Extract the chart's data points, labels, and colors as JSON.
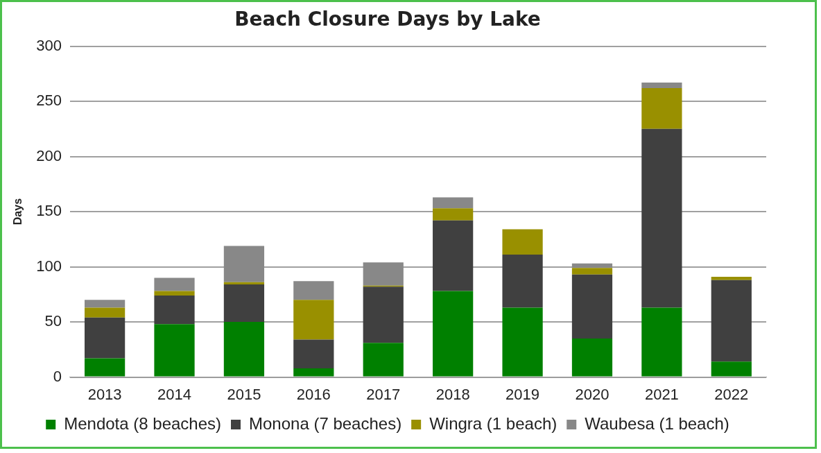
{
  "chart_data": {
    "type": "bar",
    "title": "Beach Closure Days by Lake",
    "ylabel": "Days",
    "stacked": true,
    "categories": [
      "2013",
      "2014",
      "2015",
      "2016",
      "2017",
      "2018",
      "2019",
      "2020",
      "2021",
      "2022"
    ],
    "series": [
      {
        "name": "Mendota (8 beaches)",
        "color": "#008000",
        "values": [
          17,
          48,
          50,
          8,
          31,
          78,
          63,
          35,
          63,
          14
        ]
      },
      {
        "name": "Monona (7 beaches)",
        "color": "#404040",
        "values": [
          37,
          26,
          34,
          26,
          51,
          64,
          48,
          58,
          162,
          74
        ]
      },
      {
        "name": "Wingra (1 beach)",
        "color": "#999000",
        "values": [
          9,
          4,
          2,
          36,
          1,
          11,
          23,
          6,
          37,
          3
        ]
      },
      {
        "name": "Waubesa (1 beach)",
        "color": "#888888",
        "values": [
          7,
          12,
          33,
          17,
          21,
          10,
          0,
          4,
          5,
          0
        ]
      }
    ],
    "ylim": [
      0,
      300
    ],
    "yticks": [
      0,
      50,
      100,
      150,
      200,
      250,
      300
    ],
    "grid": "y",
    "legend": "bottom"
  }
}
